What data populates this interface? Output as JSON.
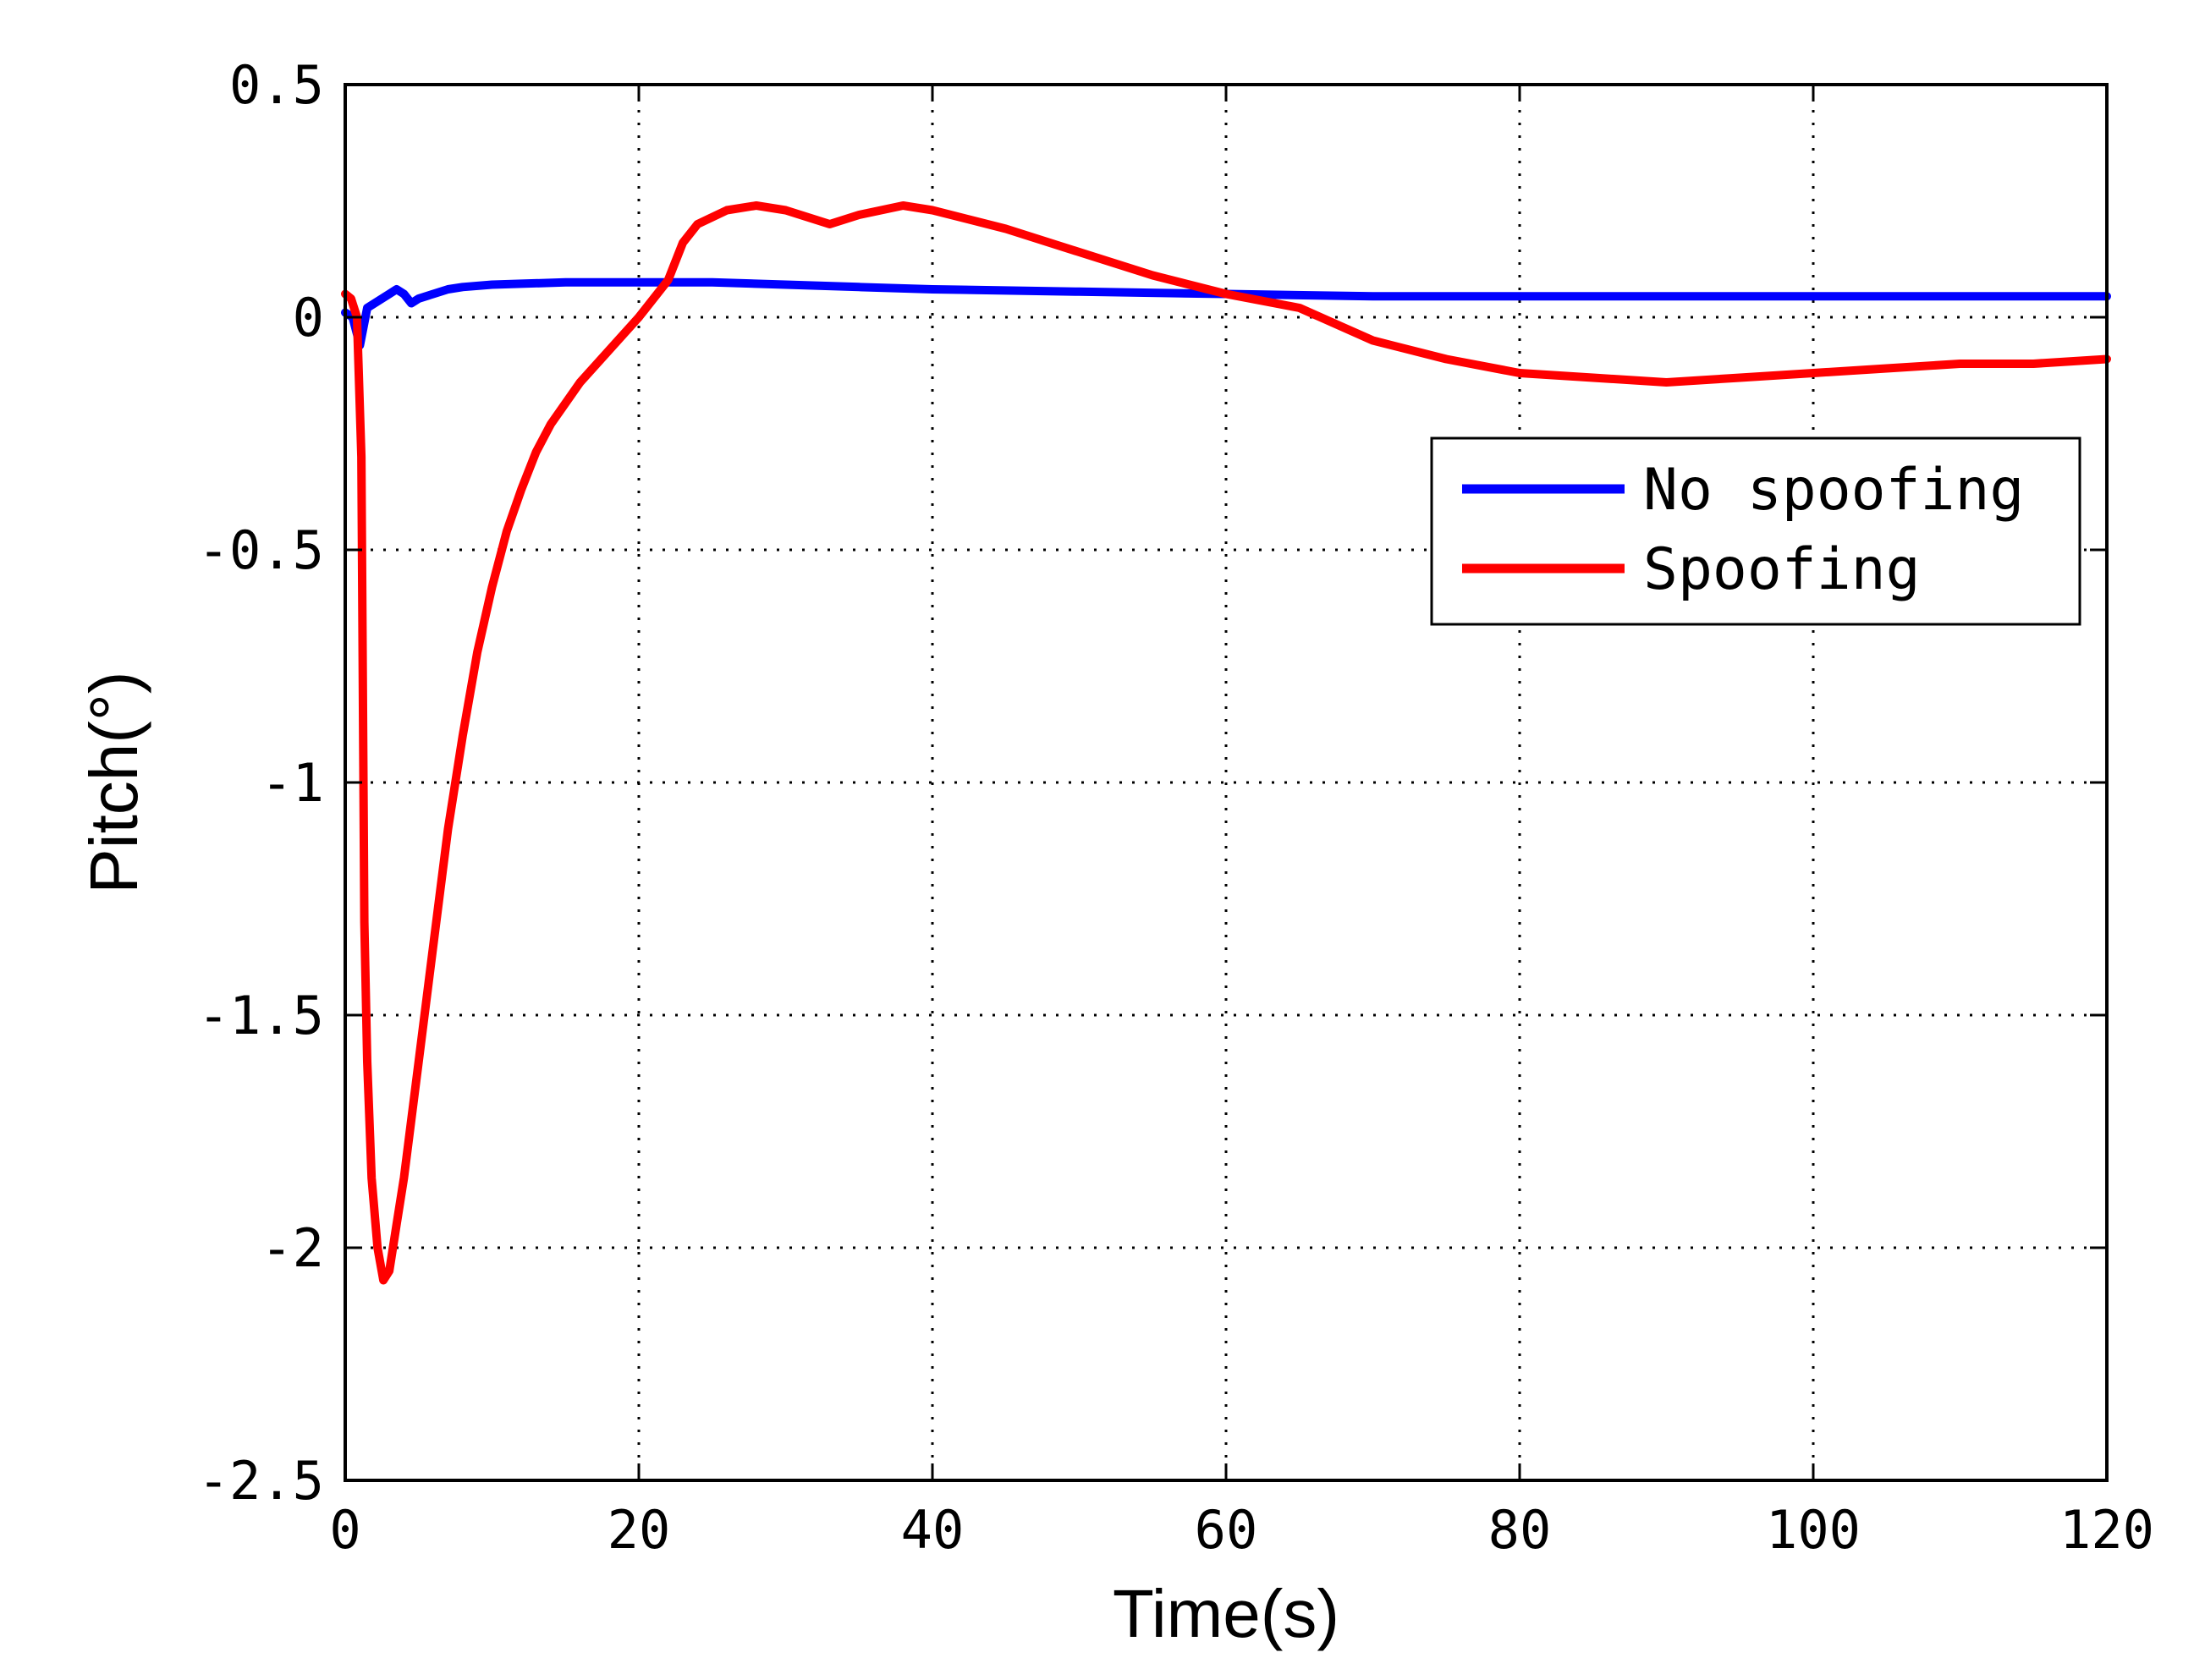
{
  "chart_data": {
    "type": "line",
    "title": "",
    "xlabel": "Time(s)",
    "ylabel": "Pitch(°)",
    "xlim": [
      0,
      120
    ],
    "ylim": [
      -2.5,
      0.5
    ],
    "xticks": [
      0,
      20,
      40,
      60,
      80,
      100,
      120
    ],
    "xtick_labels": [
      "0",
      "20",
      "40",
      "60",
      "80",
      "100",
      "120"
    ],
    "yticks": [
      0.5,
      0,
      -0.5,
      -1,
      -1.5,
      -2,
      -2.5
    ],
    "ytick_labels": [
      "0.5",
      "0",
      "-0.5",
      "-1",
      "-1.5",
      "-2",
      "-2.5"
    ],
    "grid": true,
    "legend_position": "top-right",
    "series": [
      {
        "name": "No spoofing",
        "color": "#0000ff",
        "x": [
          0,
          0.5,
          1.0,
          1.5,
          2.0,
          2.5,
          3.0,
          3.5,
          4.0,
          4.5,
          5.0,
          6.0,
          7.0,
          8.0,
          10.0,
          12.0,
          15.0,
          20.0,
          25.0,
          30.0,
          35.0,
          40.0,
          50.0,
          60.0,
          70.0,
          80.0,
          90.0,
          100.0,
          110.0,
          120.0
        ],
        "y": [
          0.01,
          0.0,
          -0.06,
          0.02,
          0.03,
          0.04,
          0.05,
          0.06,
          0.05,
          0.03,
          0.04,
          0.05,
          0.06,
          0.065,
          0.07,
          0.072,
          0.075,
          0.075,
          0.075,
          0.07,
          0.065,
          0.06,
          0.055,
          0.05,
          0.045,
          0.045,
          0.045,
          0.045,
          0.045,
          0.045
        ]
      },
      {
        "name": "Spoofing",
        "color": "#ff0000",
        "x": [
          0,
          0.4,
          0.8,
          1.1,
          1.3,
          1.5,
          1.8,
          2.2,
          2.6,
          3.0,
          3.5,
          4.0,
          5.0,
          6.0,
          7.0,
          8.0,
          9.0,
          10.0,
          11.0,
          12.0,
          13.0,
          14.0,
          16.0,
          18.0,
          20.0,
          22.0,
          23.0,
          24.0,
          26.0,
          28.0,
          30.0,
          33.0,
          35.0,
          38.0,
          40.0,
          45.0,
          50.0,
          55.0,
          60.0,
          65.0,
          70.0,
          75.0,
          80.0,
          85.0,
          90.0,
          95.0,
          100.0,
          105.0,
          110.0,
          115.0,
          120.0
        ],
        "y": [
          0.05,
          0.04,
          0.0,
          -0.3,
          -1.3,
          -1.6,
          -1.85,
          -2.0,
          -2.07,
          -2.05,
          -1.95,
          -1.85,
          -1.6,
          -1.35,
          -1.1,
          -0.9,
          -0.72,
          -0.58,
          -0.46,
          -0.37,
          -0.29,
          -0.23,
          -0.14,
          -0.07,
          0.0,
          0.08,
          0.16,
          0.2,
          0.23,
          0.24,
          0.23,
          0.2,
          0.22,
          0.24,
          0.23,
          0.19,
          0.14,
          0.09,
          0.05,
          0.02,
          -0.05,
          -0.09,
          -0.12,
          -0.13,
          -0.14,
          -0.13,
          -0.12,
          -0.11,
          -0.1,
          -0.1,
          -0.09
        ]
      }
    ]
  }
}
